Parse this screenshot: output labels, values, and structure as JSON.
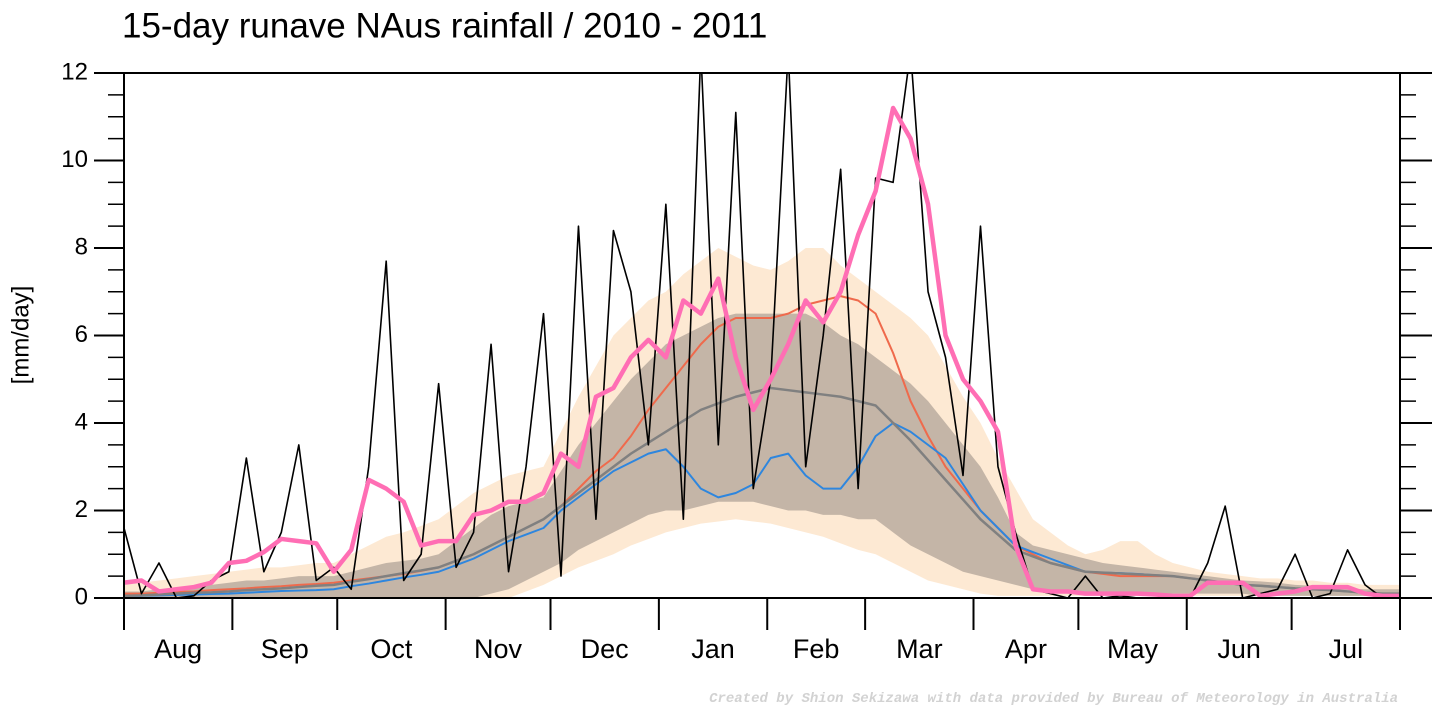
{
  "chart_data": {
    "type": "line",
    "title": "15-day runave NAus rainfall  /  2010 - 2011",
    "ylabel": "[mm/day]",
    "credit": "Created by Shion Sekizawa with data provided by Bureau of Meteorology in Australia",
    "categories": [
      "Aug",
      "Sep",
      "Oct",
      "Nov",
      "Dec",
      "Jan",
      "Feb",
      "Mar",
      "Apr",
      "May",
      "Jun",
      "Jul"
    ],
    "xlim": [
      0,
      365
    ],
    "xticks": [
      0,
      31,
      61,
      92,
      122,
      153,
      184,
      212,
      243,
      273,
      304,
      334,
      365
    ],
    "ylim": [
      0,
      12
    ],
    "yticks": [
      0,
      2,
      4,
      6,
      8,
      10,
      12
    ],
    "yminorticks": [
      0.5,
      1,
      1.5,
      2.5,
      3,
      3.5,
      4.5,
      5,
      5.5,
      6.5,
      7,
      7.5,
      8.5,
      9,
      9.5,
      10.5,
      11,
      11.5
    ],
    "x": [
      0,
      5,
      10,
      15,
      20,
      25,
      30,
      35,
      40,
      45,
      50,
      55,
      60,
      65,
      70,
      75,
      80,
      85,
      90,
      95,
      100,
      105,
      110,
      115,
      120,
      125,
      130,
      135,
      140,
      145,
      150,
      155,
      160,
      165,
      170,
      175,
      180,
      185,
      190,
      195,
      200,
      205,
      210,
      215,
      220,
      225,
      230,
      235,
      240,
      245,
      250,
      255,
      260,
      265,
      270,
      275,
      280,
      285,
      290,
      295,
      300,
      305,
      310,
      315,
      320,
      325,
      330,
      335,
      340,
      345,
      350,
      355,
      360,
      365
    ],
    "bands": [
      {
        "color": "#fde9d3",
        "lower": [
          0,
          0,
          0,
          0,
          0,
          0,
          0,
          0,
          0,
          0,
          0,
          0,
          0,
          0,
          0,
          0,
          0,
          0,
          0,
          0,
          0,
          0,
          0,
          0.15,
          0.3,
          0.5,
          0.7,
          0.85,
          1.0,
          1.2,
          1.35,
          1.5,
          1.6,
          1.7,
          1.75,
          1.8,
          1.75,
          1.7,
          1.6,
          1.5,
          1.4,
          1.25,
          1.1,
          1.0,
          0.8,
          0.6,
          0.4,
          0.3,
          0.2,
          0.1,
          0.05,
          0.05,
          0.05,
          0.05,
          0.05,
          0.05,
          0.05,
          0.05,
          0.05,
          0.05,
          0.05,
          0.05,
          0.05,
          0.05,
          0.05,
          0.05,
          0.05,
          0.05,
          0.05,
          0.05,
          0.05,
          0.05,
          0.05,
          0.05
        ],
        "upper": [
          0.3,
          0.35,
          0.4,
          0.45,
          0.5,
          0.55,
          0.6,
          0.65,
          0.7,
          0.7,
          0.75,
          0.8,
          0.8,
          1.0,
          1.2,
          1.4,
          1.5,
          1.65,
          1.8,
          2.1,
          2.4,
          2.6,
          2.8,
          2.9,
          3.0,
          3.8,
          4.6,
          5.3,
          6.0,
          6.4,
          6.8,
          7.0,
          7.4,
          7.7,
          8.0,
          7.8,
          7.6,
          7.5,
          7.7,
          8.0,
          8.0,
          7.6,
          7.3,
          7.0,
          6.7,
          6.4,
          6.0,
          5.3,
          4.6,
          4.0,
          3.2,
          2.5,
          1.8,
          1.5,
          1.2,
          1.0,
          1.1,
          1.3,
          1.3,
          1.0,
          0.8,
          0.7,
          0.6,
          0.55,
          0.5,
          0.45,
          0.45,
          0.4,
          0.4,
          0.35,
          0.35,
          0.3,
          0.3,
          0.3
        ]
      },
      {
        "color": "#c4b5a7",
        "lower": [
          0,
          0,
          0,
          0,
          0,
          0,
          0,
          0,
          0,
          0,
          0,
          0,
          0,
          0,
          0,
          0,
          0,
          0,
          0,
          0,
          0,
          0.1,
          0.2,
          0.4,
          0.6,
          0.8,
          1.1,
          1.3,
          1.5,
          1.7,
          1.9,
          2.0,
          2.0,
          2.1,
          2.2,
          2.2,
          2.2,
          2.1,
          2.0,
          2.0,
          1.9,
          1.9,
          1.8,
          1.8,
          1.5,
          1.2,
          1.0,
          0.8,
          0.6,
          0.5,
          0.4,
          0.3,
          0.2,
          0.15,
          0.1,
          0.1,
          0.1,
          0.1,
          0.1,
          0.1,
          0.1,
          0.1,
          0.1,
          0.1,
          0.1,
          0.05,
          0.05,
          0.05,
          0.05,
          0.05,
          0.05,
          0.05,
          0.05,
          0.05
        ],
        "upper": [
          0.15,
          0.15,
          0.2,
          0.2,
          0.25,
          0.3,
          0.35,
          0.4,
          0.4,
          0.45,
          0.5,
          0.5,
          0.5,
          0.6,
          0.7,
          0.8,
          0.85,
          0.9,
          1.0,
          1.3,
          1.6,
          1.9,
          2.1,
          2.2,
          2.3,
          2.9,
          3.5,
          4.0,
          4.5,
          5.0,
          5.4,
          5.8,
          6.0,
          6.2,
          6.4,
          6.5,
          6.5,
          6.5,
          6.5,
          6.5,
          6.3,
          6.0,
          5.8,
          5.5,
          5.2,
          4.9,
          4.5,
          4.0,
          3.5,
          3.0,
          2.3,
          1.5,
          1.2,
          1.1,
          1.0,
          0.9,
          0.8,
          0.75,
          0.7,
          0.65,
          0.6,
          0.55,
          0.5,
          0.45,
          0.4,
          0.38,
          0.35,
          0.3,
          0.28,
          0.25,
          0.22,
          0.2,
          0.2,
          0.2
        ]
      }
    ],
    "series": [
      {
        "color": "#ef6a4c",
        "width": 2,
        "values": [
          0.1,
          0.1,
          0.12,
          0.14,
          0.15,
          0.18,
          0.2,
          0.22,
          0.25,
          0.27,
          0.3,
          0.32,
          0.35,
          0.4,
          0.45,
          0.5,
          0.55,
          0.62,
          0.7,
          0.85,
          1.0,
          1.2,
          1.4,
          1.6,
          1.8,
          2.1,
          2.5,
          2.9,
          3.2,
          3.7,
          4.3,
          4.8,
          5.3,
          5.8,
          6.2,
          6.4,
          6.4,
          6.4,
          6.5,
          6.7,
          6.8,
          6.9,
          6.8,
          6.5,
          5.6,
          4.5,
          3.7,
          3.0,
          2.5,
          2.0,
          1.6,
          1.2,
          1.0,
          0.8,
          0.7,
          0.6,
          0.55,
          0.5,
          0.5,
          0.5,
          0.5,
          0.45,
          0.4,
          0.35,
          0.3,
          0.28,
          0.25,
          0.22,
          0.2,
          0.18,
          0.15,
          0.12,
          0.1,
          0.1
        ]
      },
      {
        "color": "#2e86de",
        "width": 2,
        "values": [
          0.05,
          0.05,
          0.06,
          0.07,
          0.08,
          0.09,
          0.1,
          0.12,
          0.14,
          0.16,
          0.17,
          0.18,
          0.2,
          0.27,
          0.33,
          0.4,
          0.47,
          0.53,
          0.6,
          0.75,
          0.9,
          1.1,
          1.3,
          1.45,
          1.6,
          2.0,
          2.3,
          2.6,
          2.9,
          3.1,
          3.3,
          3.4,
          3.0,
          2.5,
          2.3,
          2.4,
          2.6,
          3.2,
          3.3,
          2.8,
          2.5,
          2.5,
          3.0,
          3.7,
          4.0,
          3.8,
          3.5,
          3.2,
          2.6,
          2.0,
          1.6,
          1.2,
          1.05,
          0.9,
          0.75,
          0.6,
          0.58,
          0.57,
          0.55,
          0.52,
          0.5,
          0.45,
          0.4,
          0.35,
          0.3,
          0.28,
          0.25,
          0.22,
          0.2,
          0.18,
          0.15,
          0.12,
          0.1,
          0.1
        ]
      },
      {
        "color": "#808080",
        "width": 2.5,
        "values": [
          0.05,
          0.06,
          0.08,
          0.1,
          0.12,
          0.13,
          0.15,
          0.18,
          0.2,
          0.22,
          0.25,
          0.28,
          0.3,
          0.37,
          0.43,
          0.5,
          0.57,
          0.63,
          0.7,
          0.85,
          1.0,
          1.2,
          1.4,
          1.6,
          1.8,
          2.1,
          2.4,
          2.7,
          3.0,
          3.3,
          3.55,
          3.8,
          4.05,
          4.3,
          4.45,
          4.6,
          4.7,
          4.8,
          4.75,
          4.7,
          4.65,
          4.6,
          4.5,
          4.4,
          4.0,
          3.6,
          3.15,
          2.7,
          2.25,
          1.8,
          1.45,
          1.1,
          0.95,
          0.8,
          0.7,
          0.6,
          0.58,
          0.56,
          0.54,
          0.52,
          0.5,
          0.45,
          0.4,
          0.35,
          0.3,
          0.28,
          0.25,
          0.22,
          0.2,
          0.18,
          0.15,
          0.12,
          0.1,
          0.1
        ]
      },
      {
        "color": "#000000",
        "width": 1.6,
        "values": [
          1.6,
          0.1,
          0.8,
          0,
          0.05,
          0.4,
          0.6,
          3.2,
          0.6,
          1.5,
          3.5,
          0.4,
          0.7,
          0.2,
          3.0,
          7.7,
          0.4,
          1.0,
          4.9,
          0.7,
          1.5,
          5.8,
          0.6,
          3.0,
          6.5,
          0.5,
          8.5,
          1.8,
          8.4,
          7.0,
          3.5,
          9.0,
          1.8,
          12.5,
          3.5,
          11.1,
          2.5,
          5.0,
          12.5,
          3.0,
          6.0,
          9.8,
          2.5,
          9.6,
          9.5,
          12.5,
          7.0,
          5.5,
          2.8,
          8.5,
          3.0,
          1.5,
          0.2,
          0.1,
          0,
          0.5,
          0,
          0.05,
          0,
          0,
          0,
          0,
          0.8,
          2.1,
          0,
          0.1,
          0.2,
          1.0,
          0,
          0.1,
          1.1,
          0.3,
          0,
          0
        ]
      },
      {
        "color": "#ff6eb4",
        "width": 4.5,
        "values": [
          0.35,
          0.4,
          0.15,
          0.2,
          0.25,
          0.35,
          0.8,
          0.85,
          1.05,
          1.35,
          1.3,
          1.25,
          0.6,
          1.1,
          2.7,
          2.5,
          2.2,
          1.2,
          1.3,
          1.3,
          1.9,
          2.0,
          2.2,
          2.2,
          2.4,
          3.3,
          3.0,
          4.6,
          4.8,
          5.5,
          5.9,
          5.5,
          6.8,
          6.5,
          7.3,
          5.5,
          4.3,
          5.0,
          5.8,
          6.8,
          6.3,
          7.0,
          8.3,
          9.3,
          11.2,
          10.5,
          9.0,
          6.0,
          5.0,
          4.5,
          3.8,
          1.2,
          0.2,
          0.15,
          0.15,
          0.1,
          0.1,
          0.1,
          0.1,
          0.08,
          0.05,
          0.05,
          0.35,
          0.35,
          0.35,
          0.05,
          0.1,
          0.15,
          0.25,
          0.25,
          0.25,
          0.1,
          0.05,
          0.05
        ]
      }
    ]
  }
}
